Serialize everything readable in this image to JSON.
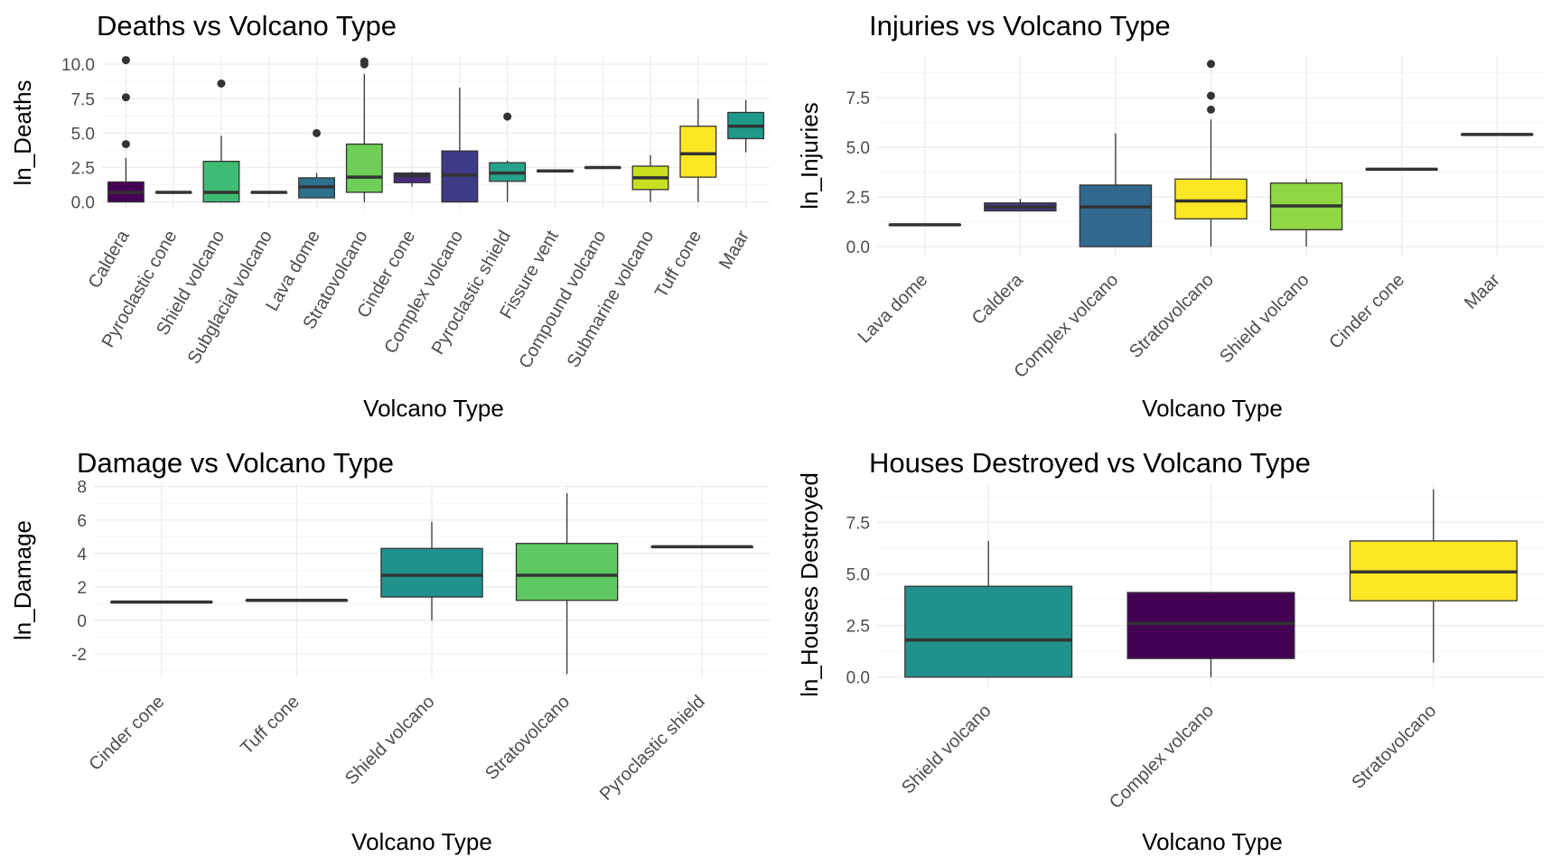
{
  "chart_data": [
    {
      "type": "boxplot",
      "title": "Deaths vs Volcano Type",
      "xlabel": "Volcano Type",
      "ylabel": "ln_Deaths",
      "yticks": [
        "0.0",
        "2.5",
        "5.0",
        "7.5",
        "10.0"
      ],
      "categories": [
        "Caldera",
        "Pyroclastic cone",
        "Shield volcano",
        "Subglacial volcano",
        "Lava dome",
        "Stratovolcano",
        "Cinder cone",
        "Complex volcano",
        "Pyroclastic shield",
        "Fissure vent",
        "Compound volcano",
        "Submarine volcano",
        "Tuff cone",
        "Maar"
      ],
      "boxes": [
        {
          "min": 0.0,
          "q1": 0.0,
          "median": 0.7,
          "q3": 1.45,
          "max": 3.2,
          "outliers": [
            4.2,
            7.6,
            10.3
          ],
          "color": "#440154"
        },
        {
          "min": 0.7,
          "q1": 0.7,
          "median": 0.7,
          "q3": 0.7,
          "max": 0.7,
          "outliers": [],
          "color": "#482173"
        },
        {
          "min": 0.0,
          "q1": 0.0,
          "median": 0.7,
          "q3": 2.95,
          "max": 4.8,
          "outliers": [
            8.6
          ],
          "color": "#3fbc73"
        },
        {
          "min": 0.7,
          "q1": 0.7,
          "median": 0.7,
          "q3": 0.7,
          "max": 0.7,
          "outliers": [],
          "color": "#3b528b"
        },
        {
          "min": 0.3,
          "q1": 0.3,
          "median": 1.1,
          "q3": 1.75,
          "max": 2.1,
          "outliers": [
            5.0
          ],
          "color": "#2c728e"
        },
        {
          "min": 0.0,
          "q1": 0.7,
          "median": 1.8,
          "q3": 4.2,
          "max": 9.3,
          "outliers": [
            10.0,
            10.2
          ],
          "color": "#6ece58"
        },
        {
          "min": 1.1,
          "q1": 1.4,
          "median": 1.9,
          "q3": 2.1,
          "max": 2.2,
          "outliers": [],
          "color": "#472d7b"
        },
        {
          "min": 0.0,
          "q1": 0.0,
          "median": 1.95,
          "q3": 3.7,
          "max": 8.3,
          "outliers": [],
          "color": "#3e3a86"
        },
        {
          "min": 0.0,
          "q1": 1.5,
          "median": 2.1,
          "q3": 2.85,
          "max": 3.0,
          "outliers": [
            6.2
          ],
          "color": "#25a28a"
        },
        {
          "min": 2.2,
          "q1": 2.2,
          "median": 2.25,
          "q3": 2.3,
          "max": 2.3,
          "outliers": [],
          "color": "#31688e"
        },
        {
          "min": 2.5,
          "q1": 2.5,
          "median": 2.5,
          "q3": 2.5,
          "max": 2.5,
          "outliers": [],
          "color": "#21918c"
        },
        {
          "min": 0.0,
          "q1": 0.9,
          "median": 1.75,
          "q3": 2.6,
          "max": 3.4,
          "outliers": [],
          "color": "#c8e020"
        },
        {
          "min": 0.0,
          "q1": 1.8,
          "median": 3.5,
          "q3": 5.5,
          "max": 7.5,
          "outliers": [],
          "color": "#fde725"
        },
        {
          "min": 3.6,
          "q1": 4.6,
          "median": 5.5,
          "q3": 6.5,
          "max": 7.4,
          "outliers": [],
          "color": "#1f998a"
        }
      ]
    },
    {
      "type": "boxplot",
      "title": "Injuries vs Volcano Type",
      "xlabel": "Volcano Type",
      "ylabel": "ln_Injuries",
      "yticks": [
        "0.0",
        "2.5",
        "5.0",
        "7.5"
      ],
      "categories": [
        "Lava dome",
        "Caldera",
        "Complex volcano",
        "Stratovolcano",
        "Shield volcano",
        "Cinder cone",
        "Maar"
      ],
      "boxes": [
        {
          "min": 1.1,
          "q1": 1.1,
          "median": 1.1,
          "q3": 1.1,
          "max": 1.1,
          "outliers": [],
          "color": "#440154"
        },
        {
          "min": 1.8,
          "q1": 1.8,
          "median": 2.0,
          "q3": 2.2,
          "max": 2.4,
          "outliers": [],
          "color": "#443983"
        },
        {
          "min": 0.0,
          "q1": 0.0,
          "median": 2.0,
          "q3": 3.1,
          "max": 5.7,
          "outliers": [],
          "color": "#31688e"
        },
        {
          "min": 0.0,
          "q1": 1.4,
          "median": 2.3,
          "q3": 3.4,
          "max": 6.4,
          "outliers": [
            6.9,
            7.6,
            9.2
          ],
          "color": "#fde725"
        },
        {
          "min": 0.0,
          "q1": 0.85,
          "median": 2.05,
          "q3": 3.2,
          "max": 3.4,
          "outliers": [],
          "color": "#8fd744"
        },
        {
          "min": 3.9,
          "q1": 3.9,
          "median": 3.9,
          "q3": 3.9,
          "max": 3.9,
          "outliers": [],
          "color": "#21918c"
        },
        {
          "min": 5.65,
          "q1": 5.65,
          "median": 5.65,
          "q3": 5.65,
          "max": 5.65,
          "outliers": [],
          "color": "#35b779"
        }
      ]
    },
    {
      "type": "boxplot",
      "title": "Damage vs Volcano Type",
      "xlabel": "Volcano Type",
      "ylabel": "ln_Damage",
      "yticks": [
        "-2",
        "0",
        "2",
        "4",
        "6",
        "8"
      ],
      "categories": [
        "Cinder cone",
        "Tuff cone",
        "Shield volcano",
        "Stratovolcano",
        "Pyroclastic shield"
      ],
      "boxes": [
        {
          "min": 1.1,
          "q1": 1.1,
          "median": 1.1,
          "q3": 1.1,
          "max": 1.1,
          "outliers": [],
          "color": "#440154"
        },
        {
          "min": 1.2,
          "q1": 1.2,
          "median": 1.2,
          "q3": 1.2,
          "max": 1.2,
          "outliers": [],
          "color": "#fde725"
        },
        {
          "min": 0.0,
          "q1": 1.4,
          "median": 2.7,
          "q3": 4.3,
          "max": 5.9,
          "outliers": [],
          "color": "#21918c"
        },
        {
          "min": -3.2,
          "q1": 1.2,
          "median": 2.7,
          "q3": 4.6,
          "max": 7.6,
          "outliers": [],
          "color": "#5ec962"
        },
        {
          "min": 4.4,
          "q1": 4.4,
          "median": 4.4,
          "q3": 4.4,
          "max": 4.4,
          "outliers": [],
          "color": "#3b528b"
        }
      ]
    },
    {
      "type": "boxplot",
      "title": "Houses Destroyed vs Volcano Type",
      "xlabel": "Volcano Type",
      "ylabel": "ln_Houses Destroyed",
      "yticks": [
        "0.0",
        "2.5",
        "5.0",
        "7.5"
      ],
      "categories": [
        "Shield volcano",
        "Complex volcano",
        "Stratovolcano"
      ],
      "boxes": [
        {
          "min": 0.0,
          "q1": 0.0,
          "median": 1.8,
          "q3": 4.4,
          "max": 6.6,
          "outliers": [],
          "color": "#21918c"
        },
        {
          "min": 0.0,
          "q1": 0.9,
          "median": 2.6,
          "q3": 4.1,
          "max": 4.1,
          "outliers": [],
          "color": "#440154"
        },
        {
          "min": 0.7,
          "q1": 3.7,
          "median": 5.1,
          "q3": 6.6,
          "max": 9.1,
          "outliers": [],
          "color": "#fde725"
        }
      ]
    }
  ]
}
